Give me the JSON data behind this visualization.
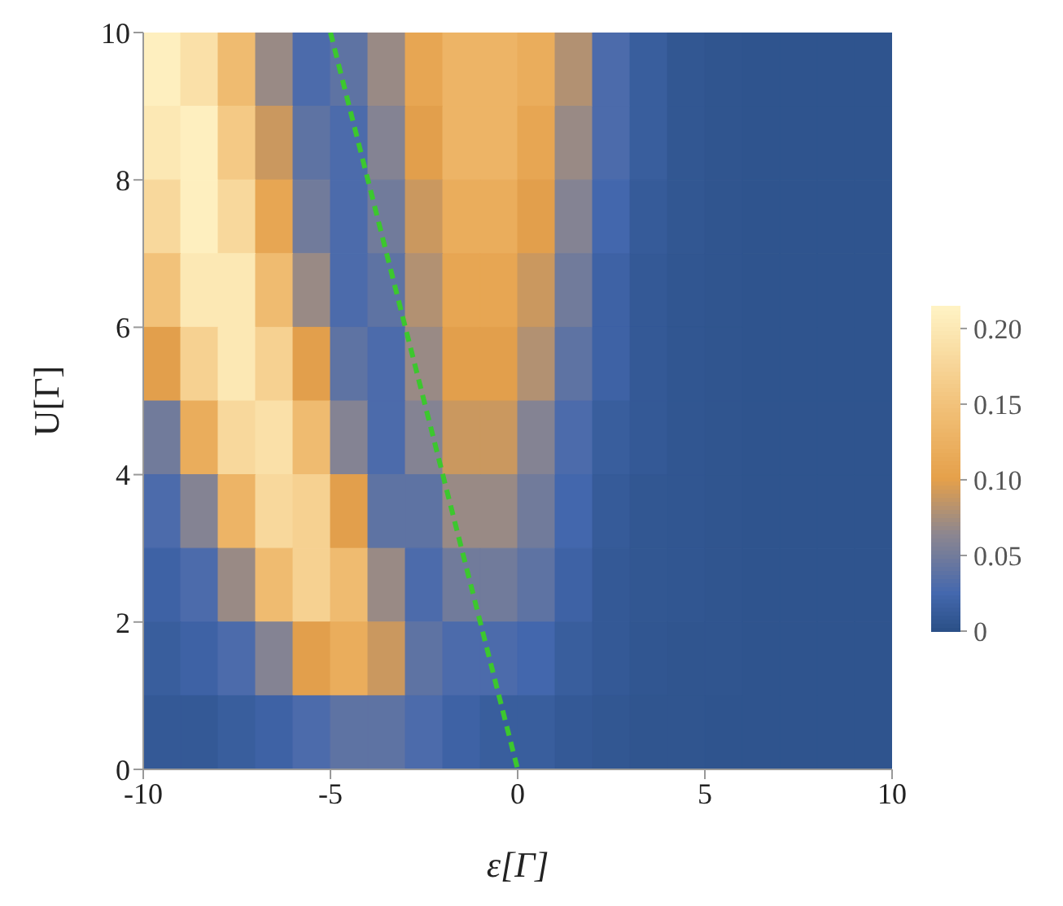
{
  "chart_data": {
    "type": "heatmap",
    "xlabel": "ε[Γ]",
    "ylabel": "U[Γ]",
    "xlim": [
      -10,
      10
    ],
    "xticks": [
      -10,
      -5,
      0,
      5,
      10
    ],
    "ylim": [
      0,
      10
    ],
    "yticks": [
      0,
      2,
      4,
      6,
      8,
      10
    ],
    "clim": [
      0,
      0.215
    ],
    "cticks": [
      0,
      0.05,
      {
        "value": 0.1,
        "label": "0.10"
      },
      0.15,
      {
        "value": 0.2,
        "label": "0.20"
      }
    ],
    "cells": [
      [
        0.21,
        0.19,
        0.14,
        0.07,
        0.03,
        0.04,
        0.07,
        0.11,
        0.13,
        0.13,
        0.12,
        0.08,
        0.03,
        0.015,
        0.008,
        0.006,
        0.005,
        0.005,
        0.005,
        0.005
      ],
      [
        0.2,
        0.21,
        0.16,
        0.09,
        0.04,
        0.03,
        0.06,
        0.1,
        0.13,
        0.13,
        0.11,
        0.07,
        0.03,
        0.015,
        0.008,
        0.006,
        0.005,
        0.005,
        0.005,
        0.005
      ],
      [
        0.18,
        0.21,
        0.18,
        0.11,
        0.05,
        0.03,
        0.05,
        0.09,
        0.12,
        0.12,
        0.1,
        0.06,
        0.025,
        0.012,
        0.008,
        0.006,
        0.005,
        0.005,
        0.005,
        0.005
      ],
      [
        0.15,
        0.2,
        0.2,
        0.14,
        0.07,
        0.03,
        0.04,
        0.08,
        0.11,
        0.11,
        0.09,
        0.05,
        0.02,
        0.01,
        0.007,
        0.006,
        0.005,
        0.005,
        0.005,
        0.005
      ],
      [
        0.1,
        0.17,
        0.2,
        0.17,
        0.1,
        0.04,
        0.03,
        0.07,
        0.1,
        0.1,
        0.08,
        0.04,
        0.02,
        0.01,
        0.007,
        0.006,
        0.005,
        0.005,
        0.005,
        0.005
      ],
      [
        0.05,
        0.12,
        0.18,
        0.19,
        0.14,
        0.06,
        0.03,
        0.06,
        0.09,
        0.09,
        0.06,
        0.03,
        0.015,
        0.01,
        0.007,
        0.006,
        0.005,
        0.005,
        0.005,
        0.005
      ],
      [
        0.03,
        0.06,
        0.13,
        0.18,
        0.17,
        0.1,
        0.04,
        0.04,
        0.07,
        0.07,
        0.05,
        0.025,
        0.012,
        0.008,
        0.007,
        0.006,
        0.005,
        0.005,
        0.005,
        0.005
      ],
      [
        0.02,
        0.03,
        0.07,
        0.14,
        0.17,
        0.14,
        0.07,
        0.03,
        0.05,
        0.05,
        0.04,
        0.02,
        0.01,
        0.008,
        0.007,
        0.006,
        0.005,
        0.005,
        0.005,
        0.005
      ],
      [
        0.015,
        0.02,
        0.03,
        0.06,
        0.1,
        0.12,
        0.09,
        0.04,
        0.03,
        0.03,
        0.025,
        0.015,
        0.01,
        0.007,
        0.006,
        0.006,
        0.005,
        0.005,
        0.005,
        0.005
      ],
      [
        0.01,
        0.01,
        0.015,
        0.02,
        0.03,
        0.04,
        0.04,
        0.03,
        0.02,
        0.015,
        0.015,
        0.01,
        0.008,
        0.006,
        0.006,
        0.005,
        0.005,
        0.005,
        0.005,
        0.005
      ]
    ],
    "series": [
      {
        "type": "line",
        "x": [
          -5,
          0
        ],
        "values": [
          10,
          0
        ],
        "color": "#3cc72e",
        "line_style": "dashed"
      }
    ]
  }
}
